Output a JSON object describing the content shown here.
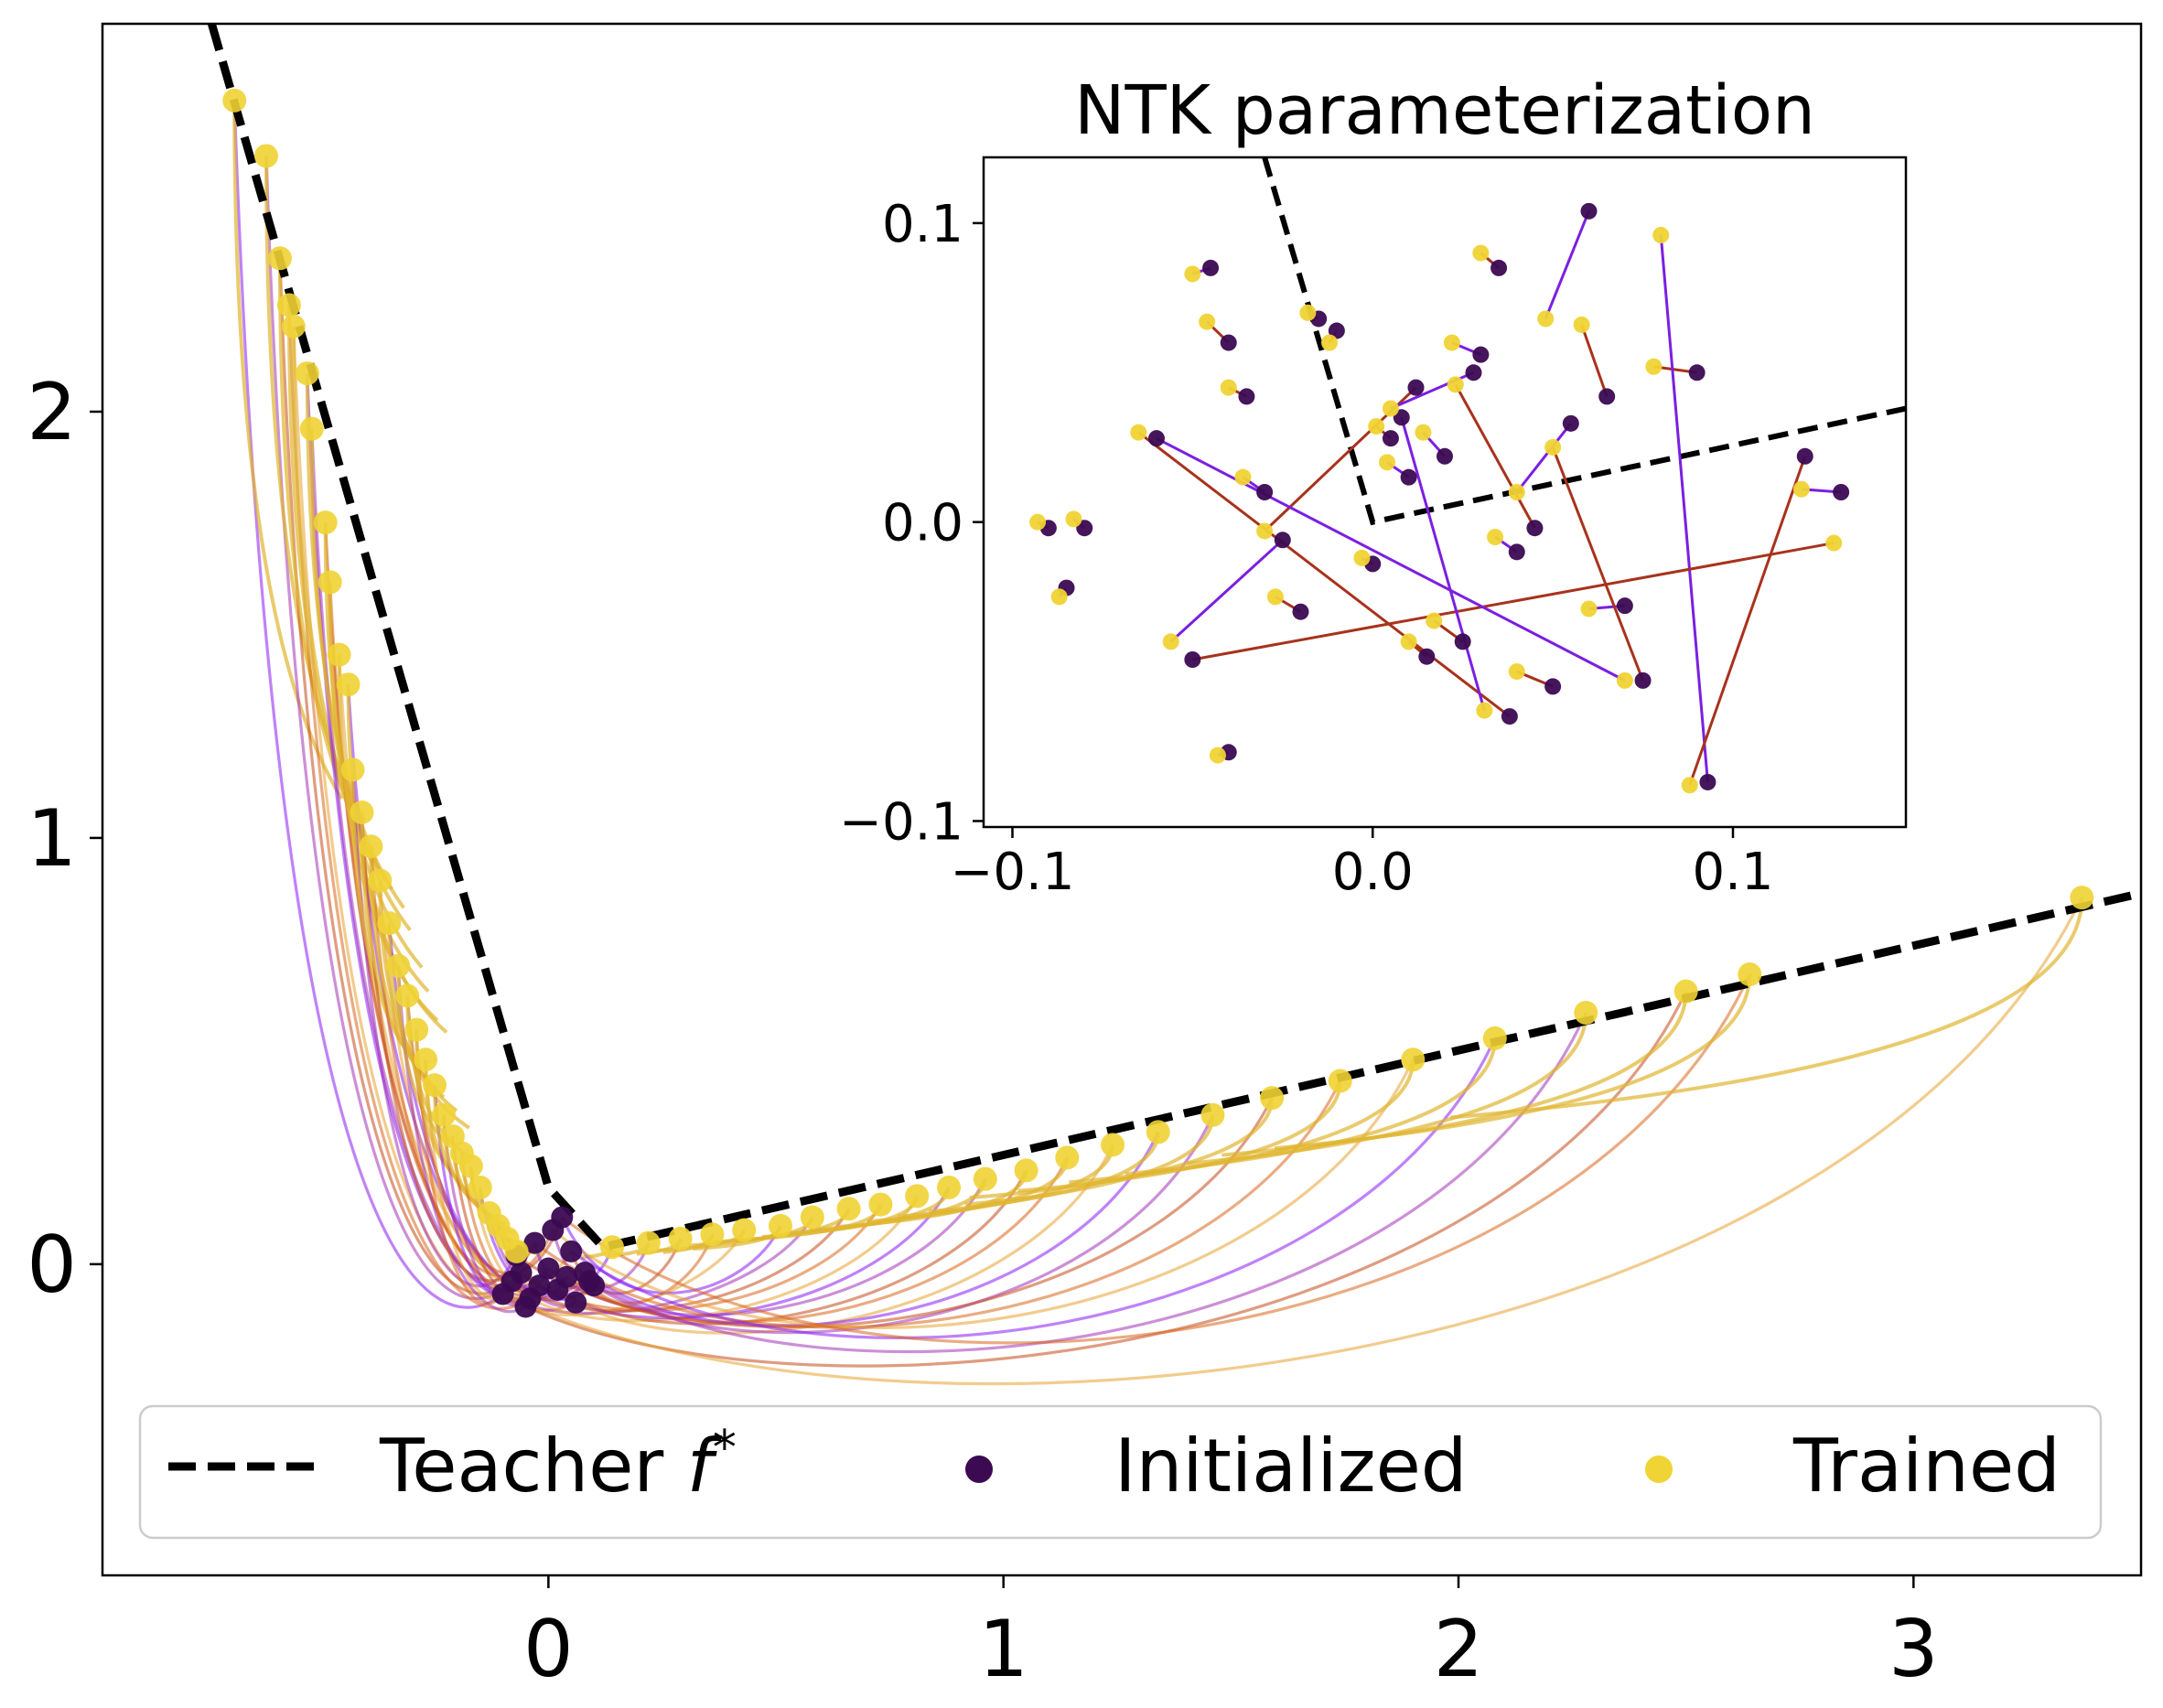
{
  "chart_data": [
    {
      "type": "scatter",
      "title": "",
      "xlabel": "",
      "ylabel": "",
      "xlim": [
        -0.98,
        3.5
      ],
      "ylim": [
        -0.73,
        2.91
      ],
      "x_ticks": [
        0,
        1,
        2,
        3
      ],
      "x_tick_labels": [
        "0",
        "1",
        "2",
        "3"
      ],
      "y_ticks": [
        0,
        1,
        2
      ],
      "y_tick_labels": [
        "0",
        "1",
        "2"
      ],
      "grid": false,
      "legend": {
        "position": "bottom-center",
        "entries": [
          {
            "label": "Teacher ",
            "math_suffix": "f",
            "superscript": "*",
            "style": "dashed-line",
            "color": "#000000"
          },
          {
            "label": "Initialized",
            "style": "marker",
            "color": "#3b0a52"
          },
          {
            "label": "Trained",
            "style": "marker",
            "color": "#f0d334"
          }
        ]
      },
      "teacher": {
        "name": "Teacher f*",
        "x": [
          -0.74,
          0.0,
          0.12,
          3.5
        ],
        "y": [
          2.91,
          0.18,
          0.04,
          0.87
        ]
      },
      "trained_points": {
        "x": [
          -0.69,
          -0.62,
          -0.59,
          -0.57,
          -0.56,
          -0.53,
          -0.52,
          -0.49,
          -0.48,
          -0.46,
          -0.44,
          -0.43,
          -0.41,
          -0.39,
          -0.37,
          -0.35,
          -0.33,
          -0.31,
          -0.29,
          -0.27,
          -0.25,
          -0.23,
          -0.21,
          -0.19,
          -0.17,
          -0.15,
          -0.13,
          -0.11,
          -0.09,
          -0.07,
          0.14,
          0.22,
          0.29,
          0.36,
          0.43,
          0.51,
          0.58,
          0.66,
          0.73,
          0.81,
          0.88,
          0.96,
          1.05,
          1.14,
          1.24,
          1.34,
          1.46,
          1.59,
          1.74,
          1.9,
          2.08,
          2.28,
          2.5,
          2.64,
          3.37
        ],
        "y": [
          2.73,
          2.6,
          2.36,
          2.25,
          2.2,
          2.09,
          1.96,
          1.74,
          1.6,
          1.43,
          1.36,
          1.16,
          1.06,
          0.98,
          0.9,
          0.8,
          0.7,
          0.63,
          0.55,
          0.48,
          0.42,
          0.35,
          0.3,
          0.26,
          0.23,
          0.18,
          0.12,
          0.09,
          0.06,
          0.03,
          0.04,
          0.05,
          0.06,
          0.07,
          0.08,
          0.09,
          0.11,
          0.13,
          0.14,
          0.16,
          0.18,
          0.2,
          0.22,
          0.25,
          0.28,
          0.31,
          0.35,
          0.39,
          0.43,
          0.48,
          0.53,
          0.59,
          0.64,
          0.68,
          0.86
        ]
      },
      "initialized_points": {
        "x": [
          -0.1,
          -0.08,
          -0.06,
          -0.04,
          -0.02,
          0.0,
          0.02,
          0.04,
          0.06,
          0.08,
          0.1,
          -0.07,
          -0.03,
          0.01,
          0.05,
          0.09,
          -0.05,
          0.03
        ],
        "y": [
          -0.07,
          -0.04,
          -0.02,
          -0.08,
          -0.05,
          -0.01,
          -0.06,
          -0.03,
          -0.09,
          -0.02,
          -0.05,
          0.02,
          0.05,
          0.08,
          0.03,
          -0.04,
          -0.1,
          0.11
        ]
      }
    },
    {
      "type": "scatter",
      "title": "NTK parameterization",
      "xlabel": "",
      "ylabel": "",
      "xlim": [
        -0.108,
        0.148
      ],
      "ylim": [
        -0.102,
        0.122
      ],
      "x_ticks": [
        -0.1,
        0.0,
        0.1
      ],
      "x_tick_labels": [
        "−0.1",
        "0.0",
        "0.1"
      ],
      "y_ticks": [
        -0.1,
        0.0,
        0.1
      ],
      "y_tick_labels": [
        "−0.1",
        "0.0",
        "0.1"
      ],
      "grid": false,
      "teacher": {
        "name": "Teacher f*",
        "x": [
          -0.03,
          0.0,
          0.148
        ],
        "y": [
          0.122,
          0.0,
          0.038
        ]
      },
      "initialized_points": {
        "x": [
          -0.09,
          -0.085,
          -0.08,
          -0.045,
          -0.04,
          -0.04,
          -0.035,
          -0.03,
          -0.02,
          -0.015,
          -0.01,
          0.0,
          0.005,
          0.01,
          0.015,
          0.02,
          0.025,
          0.03,
          0.035,
          0.04,
          0.05,
          0.06,
          0.065,
          0.07,
          0.09,
          0.093,
          0.12,
          0.13,
          -0.05,
          -0.025,
          0.012,
          0.028,
          0.045,
          0.055,
          0.075,
          -0.06,
          0.038,
          0.008
        ],
        "y": [
          -0.002,
          -0.022,
          -0.002,
          0.085,
          0.06,
          -0.077,
          0.042,
          0.01,
          -0.03,
          0.068,
          0.064,
          -0.014,
          0.028,
          0.015,
          -0.045,
          0.022,
          -0.04,
          0.056,
          0.085,
          -0.01,
          -0.055,
          0.104,
          0.042,
          -0.028,
          0.05,
          -0.087,
          0.022,
          0.01,
          -0.046,
          -0.006,
          0.045,
          0.05,
          -0.002,
          0.033,
          -0.053,
          0.028,
          -0.065,
          0.035
        ]
      },
      "trained_points": {
        "x": [
          -0.093,
          -0.087,
          -0.083,
          -0.05,
          -0.046,
          -0.043,
          -0.04,
          -0.036,
          -0.027,
          -0.018,
          -0.012,
          -0.003,
          0.001,
          0.004,
          0.01,
          0.014,
          0.017,
          0.022,
          0.03,
          0.034,
          0.04,
          0.048,
          0.058,
          0.06,
          0.078,
          0.08,
          0.088,
          0.119,
          0.128,
          -0.056,
          -0.03,
          0.005,
          0.023,
          0.04,
          0.05,
          0.07,
          -0.065,
          0.031
        ],
        "y": [
          0.0,
          -0.025,
          0.001,
          0.083,
          0.067,
          -0.078,
          0.045,
          0.015,
          -0.025,
          0.07,
          0.06,
          -0.012,
          0.032,
          0.02,
          -0.04,
          0.03,
          -0.033,
          0.06,
          0.09,
          -0.005,
          -0.05,
          0.068,
          0.066,
          -0.029,
          0.052,
          0.096,
          -0.088,
          0.011,
          -0.007,
          -0.04,
          -0.003,
          0.038,
          0.046,
          0.01,
          0.025,
          -0.053,
          0.03,
          -0.063
        ]
      }
    }
  ]
}
